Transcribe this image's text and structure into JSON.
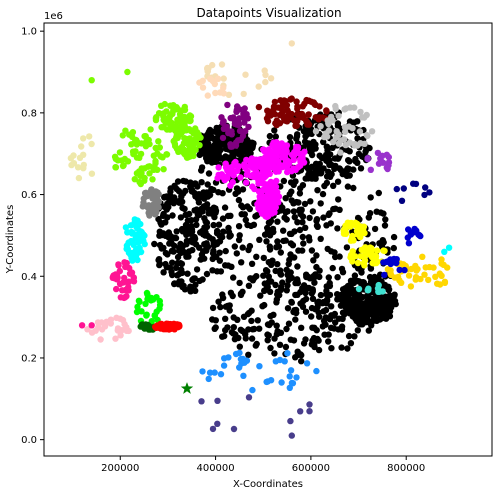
{
  "chart_data": {
    "type": "scatter",
    "title": "Datapoints Visualization",
    "xlabel": "X-Coordinates",
    "ylabel": "Y-Coordinates",
    "y_offset_text": "1e6",
    "xlim": [
      40000,
      980000
    ],
    "ylim": [
      -40000,
      1020000
    ],
    "x_ticks": [
      {
        "value": 200000,
        "label": "200000"
      },
      {
        "value": 400000,
        "label": "400000"
      },
      {
        "value": 600000,
        "label": "600000"
      },
      {
        "value": 800000,
        "label": "800000"
      }
    ],
    "y_ticks": [
      {
        "value": 0,
        "label": "0.0"
      },
      {
        "value": 200000,
        "label": "0.2"
      },
      {
        "value": 400000,
        "label": "0.4"
      },
      {
        "value": 600000,
        "label": "0.6"
      },
      {
        "value": 800000,
        "label": "0.8"
      },
      {
        "value": 1000000,
        "label": "1.0"
      }
    ],
    "grid": false,
    "legend": "none",
    "clusters": [
      {
        "color": "#000000",
        "count": 1400,
        "ellipses": [
          [
            470000,
            560000,
            130000,
            185000
          ],
          [
            640000,
            470000,
            140000,
            200000
          ],
          [
            560000,
            300000,
            170000,
            110000
          ],
          [
            620000,
            720000,
            110000,
            90000
          ],
          [
            720000,
            340000,
            60000,
            60000
          ],
          [
            420000,
            720000,
            60000,
            50000
          ],
          [
            340000,
            500000,
            70000,
            140000
          ]
        ]
      },
      {
        "color": "#ff00ff",
        "count": 260,
        "ellipses": [
          [
            470000,
            650000,
            70000,
            40000
          ],
          [
            510000,
            590000,
            25000,
            45000
          ],
          [
            540000,
            690000,
            50000,
            40000
          ]
        ]
      },
      {
        "color": "#7cfc00",
        "count": 200,
        "ellipses": [
          [
            240000,
            700000,
            60000,
            75000
          ],
          [
            310000,
            790000,
            40000,
            35000
          ],
          [
            340000,
            730000,
            30000,
            40000
          ]
        ]
      },
      {
        "color": "#800000",
        "count": 80,
        "ellipses": [
          [
            560000,
            800000,
            80000,
            35000
          ]
        ]
      },
      {
        "color": "#800080",
        "count": 45,
        "ellipses": [
          [
            440000,
            770000,
            30000,
            60000
          ]
        ]
      },
      {
        "color": "#c0c0c0",
        "count": 45,
        "ellipses": [
          [
            670000,
            760000,
            60000,
            60000
          ]
        ]
      },
      {
        "color": "#f5deb3",
        "count": 20,
        "ellipses": [
          [
            440000,
            880000,
            80000,
            50000
          ]
        ]
      },
      {
        "color": "#ffdab9",
        "count": 12,
        "ellipses": [
          [
            390000,
            860000,
            30000,
            30000
          ]
        ]
      },
      {
        "color": "#9932cc",
        "count": 15,
        "ellipses": [
          [
            760000,
            680000,
            45000,
            30000
          ]
        ]
      },
      {
        "color": "#eee8aa",
        "count": 15,
        "ellipses": [
          [
            130000,
            690000,
            35000,
            60000
          ]
        ]
      },
      {
        "color": "#808080",
        "count": 40,
        "ellipses": [
          [
            265000,
            580000,
            20000,
            35000
          ]
        ]
      },
      {
        "color": "#00ffff",
        "count": 50,
        "ellipses": [
          [
            230000,
            490000,
            22000,
            55000
          ]
        ]
      },
      {
        "color": "#ff1493",
        "count": 35,
        "ellipses": [
          [
            205000,
            390000,
            25000,
            45000
          ]
        ]
      },
      {
        "color": "#00ff00",
        "count": 25,
        "ellipses": [
          [
            260000,
            320000,
            28000,
            40000
          ]
        ]
      },
      {
        "color": "#006400",
        "count": 20,
        "ellipses": [
          [
            265000,
            277000,
            25000,
            8000
          ]
        ]
      },
      {
        "color": "#ff0000",
        "count": 40,
        "ellipses": [
          [
            300000,
            277000,
            28000,
            8000
          ]
        ]
      },
      {
        "color": "#ffc0cb",
        "count": 25,
        "ellipses": [
          [
            180000,
            270000,
            50000,
            30000
          ]
        ]
      },
      {
        "color": "#1e90ff",
        "count": 35,
        "ellipses": [
          [
            500000,
            170000,
            130000,
            50000
          ]
        ]
      },
      {
        "color": "#483d8b",
        "count": 10,
        "ellipses": [
          [
            480000,
            60000,
            150000,
            50000
          ]
        ]
      },
      {
        "color": "#ffff00",
        "count": 70,
        "ellipses": [
          [
            720000,
            450000,
            40000,
            25000
          ],
          [
            690000,
            510000,
            25000,
            25000
          ]
        ]
      },
      {
        "color": "#ffd700",
        "count": 45,
        "ellipses": [
          [
            830000,
            410000,
            70000,
            40000
          ]
        ]
      },
      {
        "color": "#0000cd",
        "count": 25,
        "ellipses": [
          [
            770000,
            420000,
            30000,
            25000
          ],
          [
            810000,
            500000,
            20000,
            20000
          ]
        ]
      },
      {
        "color": "#40e0d0",
        "count": 10,
        "ellipses": [
          [
            730000,
            370000,
            30000,
            15000
          ]
        ]
      },
      {
        "color": "#000080",
        "count": 8,
        "ellipses": [
          [
            810000,
            600000,
            40000,
            30000
          ]
        ]
      }
    ],
    "extra_points": [
      {
        "x": 140000,
        "y": 880000,
        "color": "#7cfc00"
      },
      {
        "x": 560000,
        "y": 970000,
        "color": "#f5deb3"
      },
      {
        "x": 140000,
        "y": 280000,
        "color": "#ff1493"
      },
      {
        "x": 120000,
        "y": 280000,
        "color": "#ff1493"
      },
      {
        "x": 215000,
        "y": 900000,
        "color": "#7cfc00"
      },
      {
        "x": 880000,
        "y": 460000,
        "color": "#00ffff"
      },
      {
        "x": 890000,
        "y": 470000,
        "color": "#00ffff"
      },
      {
        "x": 560000,
        "y": 10000,
        "color": "#483d8b"
      }
    ],
    "marker": {
      "x": 340000,
      "y": 125000,
      "color": "#008000",
      "shape": "star"
    }
  }
}
